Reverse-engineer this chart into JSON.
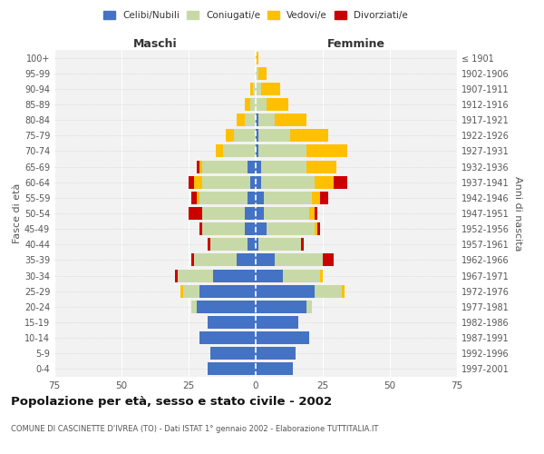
{
  "age_groups": [
    "0-4",
    "5-9",
    "10-14",
    "15-19",
    "20-24",
    "25-29",
    "30-34",
    "35-39",
    "40-44",
    "45-49",
    "50-54",
    "55-59",
    "60-64",
    "65-69",
    "70-74",
    "75-79",
    "80-84",
    "85-89",
    "90-94",
    "95-99",
    "100+"
  ],
  "birth_years": [
    "1997-2001",
    "1992-1996",
    "1987-1991",
    "1982-1986",
    "1977-1981",
    "1972-1976",
    "1967-1971",
    "1962-1966",
    "1957-1961",
    "1952-1956",
    "1947-1951",
    "1942-1946",
    "1937-1941",
    "1932-1936",
    "1927-1931",
    "1922-1926",
    "1917-1921",
    "1912-1916",
    "1907-1911",
    "1902-1906",
    "≤ 1901"
  ],
  "maschi_celibi": [
    18,
    17,
    21,
    18,
    22,
    21,
    16,
    7,
    3,
    4,
    4,
    3,
    2,
    3,
    0,
    0,
    0,
    0,
    0,
    0,
    0
  ],
  "maschi_coniugati": [
    0,
    0,
    0,
    0,
    2,
    6,
    13,
    16,
    14,
    16,
    16,
    18,
    18,
    17,
    12,
    8,
    4,
    2,
    1,
    0,
    0
  ],
  "maschi_vedovi": [
    0,
    0,
    0,
    0,
    0,
    1,
    0,
    0,
    0,
    0,
    0,
    1,
    3,
    1,
    3,
    3,
    3,
    2,
    1,
    0,
    0
  ],
  "maschi_divorziati": [
    0,
    0,
    0,
    0,
    0,
    0,
    1,
    1,
    1,
    1,
    5,
    2,
    2,
    1,
    0,
    0,
    0,
    0,
    0,
    0,
    0
  ],
  "femmine_celibi": [
    14,
    15,
    20,
    16,
    19,
    22,
    10,
    7,
    1,
    4,
    3,
    3,
    2,
    2,
    1,
    1,
    1,
    0,
    0,
    0,
    0
  ],
  "femmine_coniugati": [
    0,
    0,
    0,
    0,
    2,
    10,
    14,
    18,
    16,
    18,
    17,
    18,
    20,
    17,
    18,
    12,
    6,
    4,
    2,
    1,
    0
  ],
  "femmine_vedovi": [
    0,
    0,
    0,
    0,
    0,
    1,
    1,
    0,
    0,
    1,
    2,
    3,
    7,
    11,
    15,
    14,
    12,
    8,
    7,
    3,
    1
  ],
  "femmine_divorziati": [
    0,
    0,
    0,
    0,
    0,
    0,
    0,
    4,
    1,
    1,
    1,
    3,
    5,
    0,
    0,
    0,
    0,
    0,
    0,
    0,
    0
  ],
  "colors": {
    "celibi": "#4472C4",
    "coniugati": "#c8d9a8",
    "vedovi": "#ffc000",
    "divorziati": "#cc0000"
  },
  "bg_color": "#f2f2f2",
  "grid_color": "#cccccc",
  "title": "Popolazione per età, sesso e stato civile - 2002",
  "subtitle": "COMUNE DI CASCINETTE D'IVREA (TO) - Dati ISTAT 1° gennaio 2002 - Elaborazione TUTTITALIA.IT",
  "xlabel_left": "Maschi",
  "xlabel_right": "Femmine",
  "ylabel_left": "Fasce di età",
  "ylabel_right": "Anni di nascita",
  "xlim": 75
}
